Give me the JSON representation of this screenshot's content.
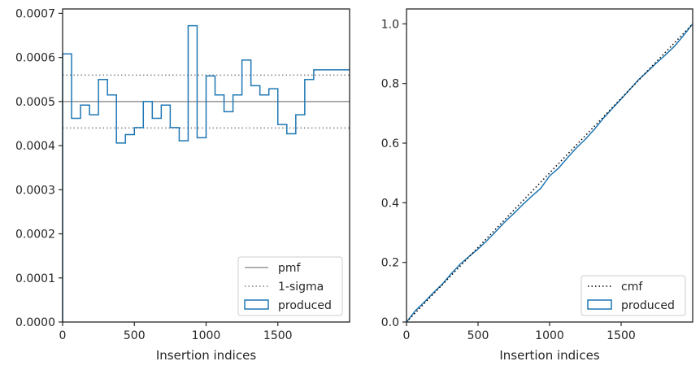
{
  "chart_data": [
    {
      "type": "line",
      "step": true,
      "xlabel": "Insertion indices",
      "ylabel": "",
      "xlim": [
        0,
        2000
      ],
      "ylim": [
        0,
        0.00071
      ],
      "xticks": [
        0,
        500,
        1000,
        1500
      ],
      "yticks": [
        0,
        0.0001,
        0.0002,
        0.0003,
        0.0004,
        0.0005,
        0.0006,
        0.0007
      ],
      "ytick_labels": [
        "0.0000",
        "0.0001",
        "0.0002",
        "0.0003",
        "0.0004",
        "0.0005",
        "0.0006",
        "0.0007"
      ],
      "grid": false,
      "legend_position": "lower right",
      "colors": {
        "pmf": "#808080",
        "sigma": "#808080",
        "produced": "#1f77b4"
      },
      "series": [
        {
          "name": "pmf",
          "kind": "hline",
          "value": 0.0005
        },
        {
          "name": "1-sigma",
          "kind": "hlines",
          "values": [
            0.00044,
            0.00056
          ]
        },
        {
          "name": "produced",
          "kind": "step",
          "bin_width": 62.5,
          "values": [
            0.000608,
            0.000462,
            0.000492,
            0.00047,
            0.00055,
            0.000515,
            0.000406,
            0.000425,
            0.000441,
            0.0005,
            0.000462,
            0.000492,
            0.000441,
            0.000411,
            0.000672,
            0.000418,
            0.000558,
            0.000515,
            0.000477,
            0.000515,
            0.000594,
            0.000536,
            0.000515,
            0.000529,
            0.000448,
            0.000427,
            0.00047,
            0.00055,
            0.000572,
            0.000572,
            0.000572,
            0.000572
          ]
        }
      ]
    },
    {
      "type": "line",
      "xlabel": "Insertion indices",
      "ylabel": "",
      "xlim": [
        0,
        2000
      ],
      "ylim": [
        0,
        1.05
      ],
      "xticks": [
        0,
        500,
        1000,
        1500
      ],
      "yticks": [
        0,
        0.2,
        0.4,
        0.6,
        0.8,
        1.0
      ],
      "ytick_labels": [
        "0.0",
        "0.2",
        "0.4",
        "0.6",
        "0.8",
        "1.0"
      ],
      "grid": false,
      "legend_position": "lower right",
      "colors": {
        "cmf": "#000000",
        "produced": "#1f77b4"
      },
      "series": [
        {
          "name": "cmf",
          "x": [
            0,
            2000
          ],
          "y": [
            0,
            1.0
          ]
        },
        {
          "name": "produced",
          "x": [
            0,
            62.5,
            125,
            187.5,
            250,
            312.5,
            375,
            437.5,
            500,
            562.5,
            625,
            687.5,
            750,
            812.5,
            875,
            937.5,
            1000,
            1062.5,
            1125,
            1187.5,
            1250,
            1312.5,
            1375,
            1437.5,
            1500,
            1562.5,
            1625,
            1687.5,
            1750,
            1812.5,
            1875,
            1937.5,
            2000
          ],
          "y": [
            0,
            0.038,
            0.067,
            0.098,
            0.127,
            0.162,
            0.194,
            0.22,
            0.245,
            0.273,
            0.304,
            0.336,
            0.364,
            0.394,
            0.422,
            0.448,
            0.49,
            0.516,
            0.551,
            0.584,
            0.613,
            0.646,
            0.683,
            0.716,
            0.748,
            0.781,
            0.814,
            0.842,
            0.87,
            0.897,
            0.926,
            0.962,
            1.0
          ]
        }
      ]
    }
  ]
}
